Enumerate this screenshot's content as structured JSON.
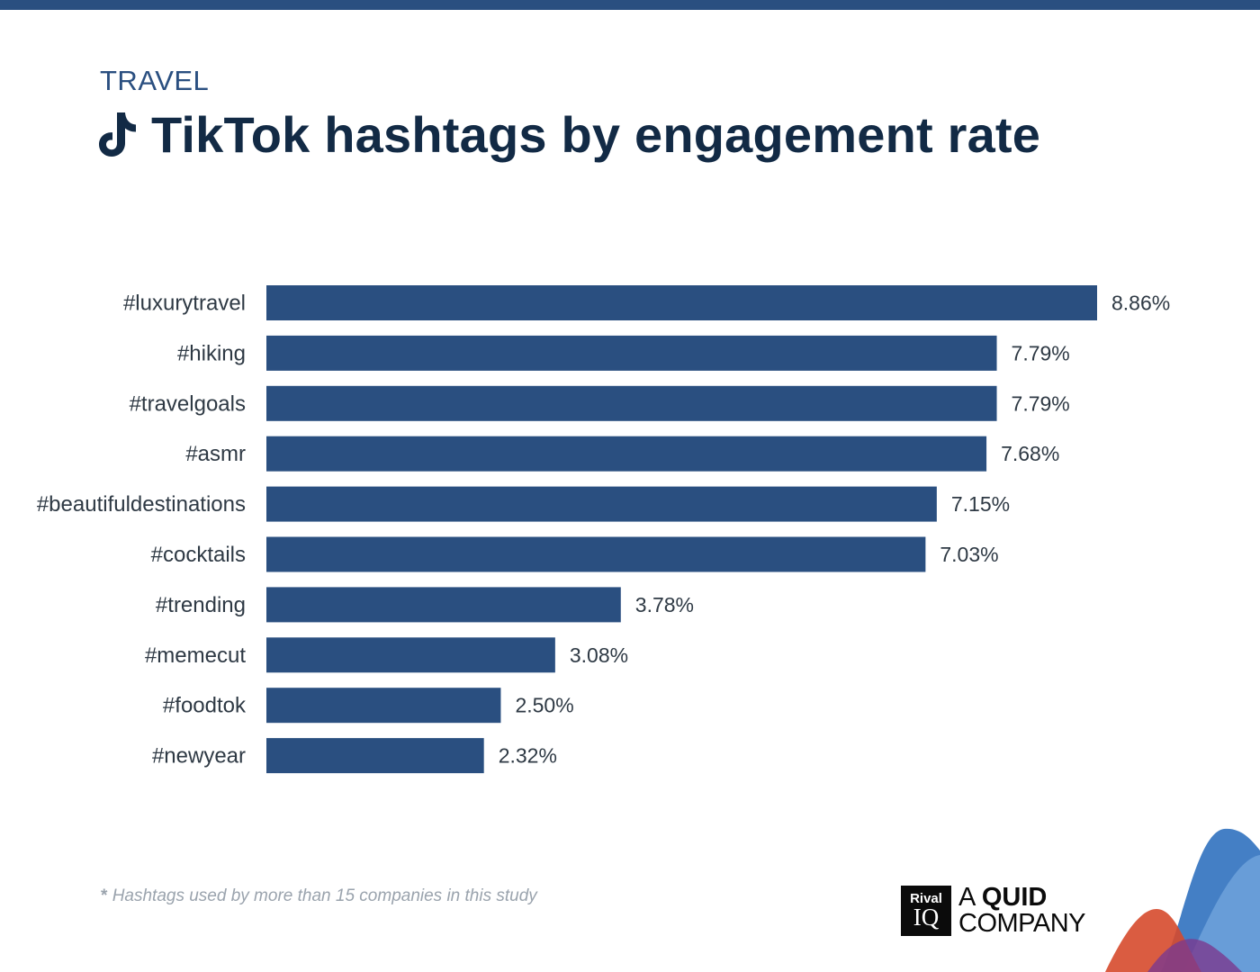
{
  "header": {
    "category": "TRAVEL",
    "title": "TikTok hashtags by engagement rate",
    "icon": "tiktok-icon"
  },
  "chart_data": {
    "type": "bar",
    "orientation": "horizontal",
    "title": "TikTok hashtags by engagement rate",
    "categories": [
      "#luxurytravel",
      "#hiking",
      "#travelgoals",
      "#asmr",
      "#beautifuldestinations",
      "#cocktails",
      "#trending",
      "#memecut",
      "#foodtok",
      "#newyear"
    ],
    "values": [
      8.86,
      7.79,
      7.79,
      7.68,
      7.15,
      7.03,
      3.78,
      3.08,
      2.5,
      2.32
    ],
    "value_labels": [
      "8.86%",
      "7.79%",
      "7.79%",
      "7.68%",
      "7.15%",
      "7.03%",
      "3.78%",
      "3.08%",
      "2.50%",
      "2.32%"
    ],
    "xlabel": "",
    "ylabel": "",
    "xlim": [
      0,
      8.86
    ],
    "grid": false,
    "bar_color": "#2a4f80"
  },
  "footnote": {
    "star": "*",
    "text": "Hashtags used by more than 15 companies in this study"
  },
  "logo": {
    "rival": "Rival",
    "iq": "IQ",
    "line1_a": "A",
    "line1_quid": "QUID",
    "line2": "COMPANY"
  },
  "colors": {
    "accent": "#2a4f80",
    "title": "#122a45",
    "label": "#2e3944",
    "footnote": "#9aa3ad"
  }
}
